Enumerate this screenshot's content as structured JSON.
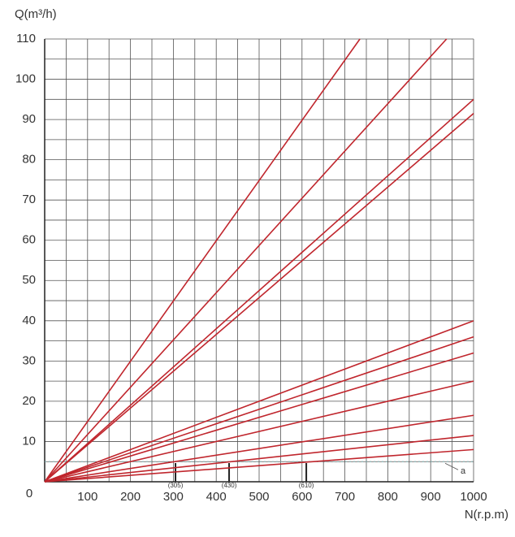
{
  "chart_data": {
    "type": "line",
    "y_label": "Q(m³/h)",
    "x_label": "N(r.p.m)",
    "origin_label": "0",
    "xlim": [
      0,
      1000
    ],
    "ylim": [
      0,
      110
    ],
    "xticks": [
      100,
      200,
      300,
      400,
      500,
      600,
      700,
      800,
      900,
      1000
    ],
    "yticks": [
      10,
      20,
      30,
      40,
      50,
      60,
      70,
      80,
      90,
      100,
      110
    ],
    "x_minor_ticks": [
      50,
      150,
      250,
      350,
      450,
      550,
      650,
      750,
      850,
      950
    ],
    "y_minor_ticks": [
      5,
      15,
      25,
      35,
      45,
      55,
      65,
      75,
      85,
      95,
      105
    ],
    "grid": true,
    "color": "#c0262d",
    "series": [
      {
        "x": [
          0,
          735
        ],
        "values": [
          0,
          110
        ]
      },
      {
        "x": [
          0,
          937
        ],
        "values": [
          0,
          110
        ]
      },
      {
        "x": [
          0,
          1000
        ],
        "values": [
          0,
          95
        ]
      },
      {
        "x": [
          0,
          1000
        ],
        "values": [
          0,
          91.5
        ]
      },
      {
        "x": [
          0,
          1000
        ],
        "values": [
          0,
          40
        ]
      },
      {
        "x": [
          0,
          1000
        ],
        "values": [
          0,
          36
        ]
      },
      {
        "x": [
          0,
          1000
        ],
        "values": [
          0,
          32
        ]
      },
      {
        "x": [
          0,
          1000
        ],
        "values": [
          0,
          25
        ]
      },
      {
        "x": [
          0,
          1000
        ],
        "values": [
          0,
          16.5
        ]
      },
      {
        "x": [
          0,
          1000
        ],
        "values": [
          0,
          11.5
        ]
      },
      {
        "x": [
          0,
          1000
        ],
        "values": [
          0,
          8
        ]
      }
    ],
    "ref_line": {
      "value": 5,
      "label": "a"
    },
    "markers": [
      {
        "value": 305,
        "label": "(305)"
      },
      {
        "value": 430,
        "label": "(430)"
      },
      {
        "value": 610,
        "label": "(610)"
      }
    ]
  }
}
